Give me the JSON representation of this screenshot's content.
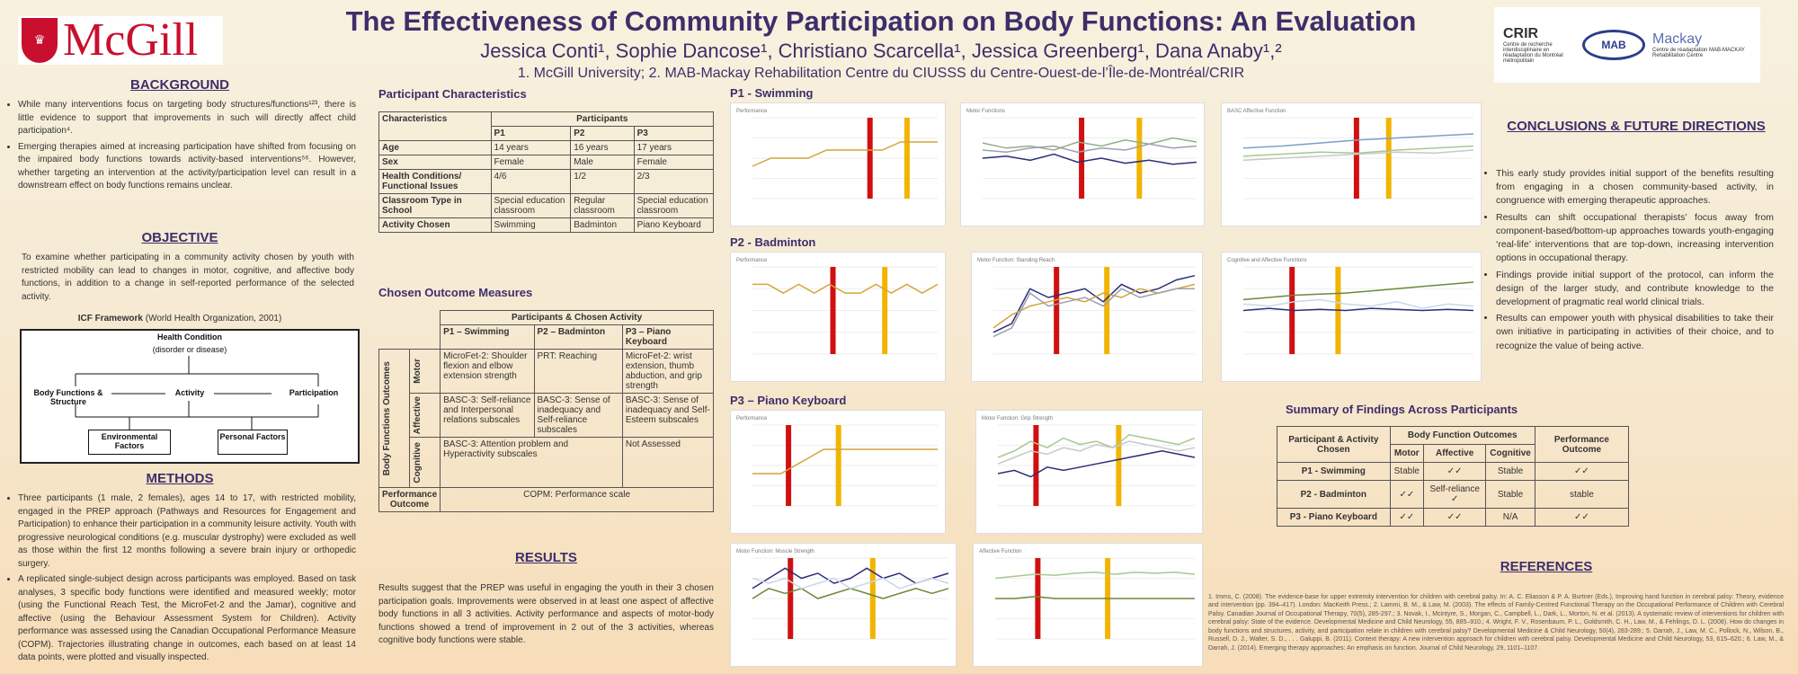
{
  "header": {
    "logo_text": "McGill",
    "title": "The Effectiveness of Community Participation on Body Functions: An Evaluation",
    "authors": "Jessica Conti¹, Sophie Dancose¹, Christiano Scarcella¹, Jessica Greenberg¹, Dana Anaby¹,²",
    "affiliations": "1. McGill University; 2. MAB-Mackay Rehabilitation Centre du CIUSSS du Centre-Ouest-de-l’Île-de-Montréal/CRIR",
    "partner_crir": "CRIR",
    "partner_crir_sub": "Centre de recherche interdisciplinaire en réadaptation du Montréal métropolitain",
    "partner_mab": "MAB",
    "partner_mackay": "Mackay",
    "partner_mackay_sub": "Centre de réadaptation MAB-MACKAY Rehabilitation Centre"
  },
  "background": {
    "heading": "BACKGROUND",
    "bullets": [
      "While many interventions focus on targeting body structures/functions¹²³, there is little evidence to support that improvements in such will directly affect child participation⁴.",
      "Emerging therapies aimed at increasing participation have shifted from focusing on the impaired body functions towards activity-based interventions⁵⁶. However, whether targeting an intervention at the activity/participation level can result in a downstream effect on body functions remains unclear."
    ]
  },
  "objective": {
    "heading": "OBJECTIVE",
    "text": "To examine whether participating in a community activity chosen by youth with restricted mobility can lead to changes in motor, cognitive, and affective body functions, in addition to a change in self-reported performance of the selected activity."
  },
  "icf": {
    "title": "ICF Framework",
    "title_source": "(World Health Organization, 2001)",
    "health": "Health Condition",
    "health_sub": "(disorder or disease)",
    "body": "Body Functions & Structure",
    "activity": "Activity",
    "participation": "Participation",
    "env": "Environmental Factors",
    "personal": "Personal Factors"
  },
  "methods": {
    "heading": "METHODS",
    "bullets": [
      "Three participants (1 male, 2 females), ages 14 to 17, with restricted mobility, engaged in the PREP approach (Pathways and Resources for Engagement and Participation) to enhance their participation in a community leisure activity. Youth with progressive neurological conditions (e.g. muscular dystrophy) were excluded as well as those within the first 12 months following a severe brain injury or orthopedic surgery.",
      "A replicated single-subject design across participants was employed. Based on task analyses, 3 specific body functions were identified and measured weekly; motor (using the Functional Reach Test, the MicroFet-2 and the Jamar), cognitive and affective (using the Behaviour Assessment System for Children). Activity performance was assessed using the Canadian Occupational Performance Measure (COPM). Trajectories illustrating change in outcomes, each based on at least 14 data points, were plotted and visually inspected."
    ]
  },
  "participants": {
    "heading": "Participant Characteristics",
    "col_char": "Characteristics",
    "col_part": "Participants",
    "cols": [
      "P1",
      "P2",
      "P3"
    ],
    "rows": [
      {
        "label": "Age",
        "vals": [
          "14 years",
          "16 years",
          "17 years"
        ]
      },
      {
        "label": "Sex",
        "vals": [
          "Female",
          "Male",
          "Female"
        ]
      },
      {
        "label": "Health Conditions/ Functional Issues",
        "vals": [
          "4/6",
          "1/2",
          "2/3"
        ]
      },
      {
        "label": "Classroom Type in School",
        "vals": [
          "Special education classroom",
          "Regular classroom",
          "Special education classroom"
        ]
      },
      {
        "label": "Activity Chosen",
        "vals": [
          "Swimming",
          "Badminton",
          "Piano Keyboard"
        ]
      }
    ]
  },
  "outcomes": {
    "heading": "Chosen Outcome Measures",
    "top": "Participants & Chosen Activity",
    "cols": [
      "P1 – Swimming",
      "P2 – Badminton",
      "P3 – Piano Keyboard"
    ],
    "side": "Body Functions Outcomes",
    "motor": "Motor",
    "affective": "Affective",
    "cognitive": "Cognitive",
    "motor_vals": [
      "MicroFet-2: Shoulder flexion and elbow extension strength",
      "PRT: Reaching",
      "MicroFet-2: wrist extension, thumb abduction, and grip strength"
    ],
    "affective_vals": [
      "BASC-3: Self-reliance and Interpersonal relations subscales",
      "BASC-3: Sense of inadequacy and Self-reliance subscales",
      "BASC-3: Sense of inadequacy and Self-Esteem subscales"
    ],
    "cognitive_val": "BASC-3: Attention problem and Hyperactivity subscales",
    "cognitive_p3": "Not Assessed",
    "perf_label": "Performance Outcome",
    "perf_val": "COPM: Performance scale"
  },
  "results": {
    "heading": "RESULTS",
    "text": "Results suggest that the PREP was useful in engaging the youth in their 3 chosen participation goals. Improvements were observed in at least one aspect of affective body functions in all 3 activities. Activity performance and aspects of motor-body functions showed a trend of improvement in 2 out of the 3 activities, whereas cognitive body functions were stable."
  },
  "panels": {
    "p1": "P1 - Swimming",
    "p2": "P2 - Badminton",
    "p3": "P3 – Piano Keyboard"
  },
  "conclusions": {
    "heading": "CONCLUSIONS & FUTURE DIRECTIONS",
    "bullets": [
      "This early study provides initial support of the benefits resulting from engaging in a chosen community-based activity, in congruence with emerging therapeutic approaches.",
      "Results can shift occupational therapists’ focus away from component-based/bottom-up approaches towards youth-engaging ‘real-life’ interventions that are top-down, increasing intervention options in occupational therapy.",
      "Findings provide initial support of the protocol, can inform the design of the larger study, and contribute knowledge to the development of pragmatic real world clinical trials.",
      "Results can empower youth with physical disabilities to take their own initiative in participating in activities of their choice, and to recognize the value of being active."
    ]
  },
  "summary": {
    "heading": "Summary of Findings Across Participants",
    "h_part": "Participant & Activity Chosen",
    "h_body": "Body Function Outcomes",
    "h_perf": "Performance Outcome",
    "sub": [
      "Motor",
      "Affective",
      "Cognitive"
    ],
    "rows": [
      {
        "label": "P1 - Swimming",
        "vals": [
          "Stable",
          "✓✓",
          "Stable",
          "✓✓"
        ]
      },
      {
        "label": "P2 - Badminton",
        "vals": [
          "✓✓",
          "Self-reliance ✓",
          "Stable",
          "stable"
        ]
      },
      {
        "label": "P3 - Piano Keyboard",
        "vals": [
          "✓✓",
          "✓✓",
          "N/A",
          "✓✓"
        ]
      }
    ]
  },
  "references": {
    "heading": "REFERENCES",
    "text": "1. Imms, C. (2008). The evidence-base for upper extremity intervention for children with cerebral palsy. In: A. C. Eliasson & P. A. Burtner (Eds.), Improving hand function in cerebral palsy: Theory, evidence and intervention (pp. 394–417). London: MacKeith Press.; 2. Lammi, B. M., & Law, M. (2003). The effects of Family-Centred Functional Therapy on the Occupational Performance of Children with Cerebral Palsy. Canadian Journal of Occupational Therapy, 70(5), 285-297.; 3. Novak, I., Mcintyre, S., Morgan, C., Campbell, L., Dark, L., Morton, N. et al. (2013). A systematic review of interventions for children with cerebral palsy: State of the evidence. Developmental Medicine and Child Neurology, 55, 885–910.; 4. Wright, F. V., Rosenbaum, P. L., Goldsmith, C. H., Law, M., & Fehlings, D. L. (2008). How do changes in body functions and structures, activity, and participation relate in children with cerebral palsy? Developmental Medicine & Child Neurology, 50(4), 283-289.; 5. Darrah, J., Law, M. C., Pollock, N., Wilson, B., Russell, D. J., Walter, S. D., . . . Galuppi, B. (2011). Context therapy: A new intervention approach for children with cerebral palsy. Developmental Medicine and Child Neurology, 53, 615–620.; 6. Law, M., & Darrah, J. (2014). Emerging therapy approaches: An emphasis on function. Journal of Child Neurology, 29, 1101–1107."
  },
  "charts": [
    {
      "id": "c1",
      "title": "Performance",
      "bands": [
        0.62,
        0.82
      ],
      "series": [
        {
          "color": "#d4a43a",
          "values": [
            4,
            5,
            5,
            5,
            6,
            6,
            6,
            6,
            7,
            7,
            7
          ]
        }
      ],
      "ymax": 10
    },
    {
      "id": "c2",
      "title": "Motor Functions",
      "bands": [
        0.45,
        0.72
      ],
      "series": [
        {
          "color": "#2b2f7a",
          "values": [
            40,
            42,
            38,
            44,
            36,
            40,
            35,
            38,
            34,
            36
          ]
        },
        {
          "color": "#8fb08a",
          "values": [
            55,
            50,
            52,
            48,
            56,
            52,
            58,
            54,
            60,
            56
          ]
        },
        {
          "color": "#9aa0b0",
          "values": [
            48,
            46,
            50,
            52,
            46,
            50,
            48,
            54,
            50,
            52
          ]
        }
      ],
      "ymax": 80
    },
    {
      "id": "c3",
      "title": "BASC Affective Function",
      "bands": [
        0.48,
        0.62
      ],
      "series": [
        {
          "color": "#7aa0c8",
          "values": [
            50,
            52,
            55,
            58,
            60,
            62,
            64
          ]
        },
        {
          "color": "#a8c890",
          "values": [
            42,
            44,
            46,
            45,
            48,
            50,
            52
          ]
        },
        {
          "color": "#c8c8c8",
          "values": [
            38,
            40,
            42,
            44,
            46,
            45,
            48
          ]
        }
      ],
      "ymax": 80
    },
    {
      "id": "c4",
      "title": "Performance",
      "bands": [
        0.42,
        0.7
      ],
      "series": [
        {
          "color": "#d4a43a",
          "values": [
            8,
            8,
            7,
            8,
            7,
            8,
            7,
            7,
            8,
            7,
            8,
            7,
            8
          ]
        }
      ],
      "ymax": 10
    },
    {
      "id": "c5",
      "title": "Motor Function: Standing Reach",
      "bands": [
        0.3,
        0.55
      ],
      "series": [
        {
          "color": "#2b2f7a",
          "values": [
            10,
            14,
            30,
            26,
            28,
            30,
            24,
            32,
            28,
            30,
            34,
            36
          ]
        },
        {
          "color": "#d4a43a",
          "values": [
            12,
            18,
            22,
            24,
            26,
            24,
            28,
            26,
            30,
            28,
            30,
            32
          ]
        },
        {
          "color": "#9aa0b0",
          "values": [
            8,
            12,
            28,
            22,
            24,
            26,
            22,
            30,
            26,
            28,
            30,
            30
          ]
        }
      ],
      "ymax": 40
    },
    {
      "id": "c6",
      "title": "Cognitive and Affective Functions",
      "bands": [
        0.2,
        0.4
      ],
      "series": [
        {
          "color": "#6a8a3a",
          "values": [
            50,
            52,
            54,
            55,
            56,
            58,
            60,
            62,
            64,
            66
          ]
        },
        {
          "color": "#2b2f7a",
          "values": [
            40,
            42,
            40,
            41,
            40,
            42,
            41,
            40,
            41,
            40
          ]
        },
        {
          "color": "#c8d8e8",
          "values": [
            46,
            44,
            48,
            50,
            46,
            44,
            48,
            42,
            46,
            44
          ]
        }
      ],
      "ymax": 80
    },
    {
      "id": "c7",
      "title": "Performance",
      "bands": [
        0.18,
        0.45
      ],
      "series": [
        {
          "color": "#d4a43a",
          "values": [
            4,
            4,
            4,
            5,
            6,
            7,
            7,
            7,
            7,
            7,
            7,
            7,
            7,
            7
          ]
        }
      ],
      "ymax": 10
    },
    {
      "id": "c8",
      "title": "Motor Function: Grip Strength",
      "bands": [
        0.18,
        0.6
      ],
      "series": [
        {
          "color": "#2b2f7a",
          "values": [
            20,
            22,
            18,
            24,
            22,
            24,
            26,
            28,
            30,
            32,
            34,
            32,
            30
          ]
        },
        {
          "color": "#a8c890",
          "values": [
            30,
            34,
            40,
            36,
            42,
            38,
            40,
            36,
            44,
            42,
            40,
            38,
            42
          ]
        },
        {
          "color": "#c8c8c8",
          "values": [
            26,
            30,
            34,
            32,
            36,
            34,
            38,
            36,
            40,
            38,
            36,
            34,
            36
          ]
        }
      ],
      "ymax": 50
    },
    {
      "id": "c9",
      "title": "Motor Function: Muscle Strength",
      "bands": [
        0.18,
        0.6
      ],
      "series": [
        {
          "color": "#2b2f7a",
          "values": [
            10,
            12,
            14,
            12,
            13,
            11,
            12,
            14,
            12,
            13,
            11,
            12,
            13
          ]
        },
        {
          "color": "#6a8a3a",
          "values": [
            8,
            10,
            9,
            10,
            8,
            9,
            10,
            9,
            8,
            9,
            10,
            9,
            10
          ]
        },
        {
          "color": "#c8d8e8",
          "values": [
            12,
            11,
            12,
            10,
            11,
            12,
            10,
            11,
            12,
            10,
            11,
            12,
            11
          ]
        }
      ],
      "ymax": 16
    },
    {
      "id": "c10",
      "title": "Affective Function",
      "bands": [
        0.2,
        0.55
      ],
      "series": [
        {
          "color": "#a8c890",
          "values": [
            60,
            62,
            64,
            63,
            65,
            66,
            64,
            66,
            65,
            66,
            64
          ]
        },
        {
          "color": "#6a8a3a",
          "values": [
            40,
            40,
            42,
            40,
            40,
            40,
            40,
            40,
            40,
            40,
            40
          ]
        }
      ],
      "ymax": 80
    }
  ]
}
